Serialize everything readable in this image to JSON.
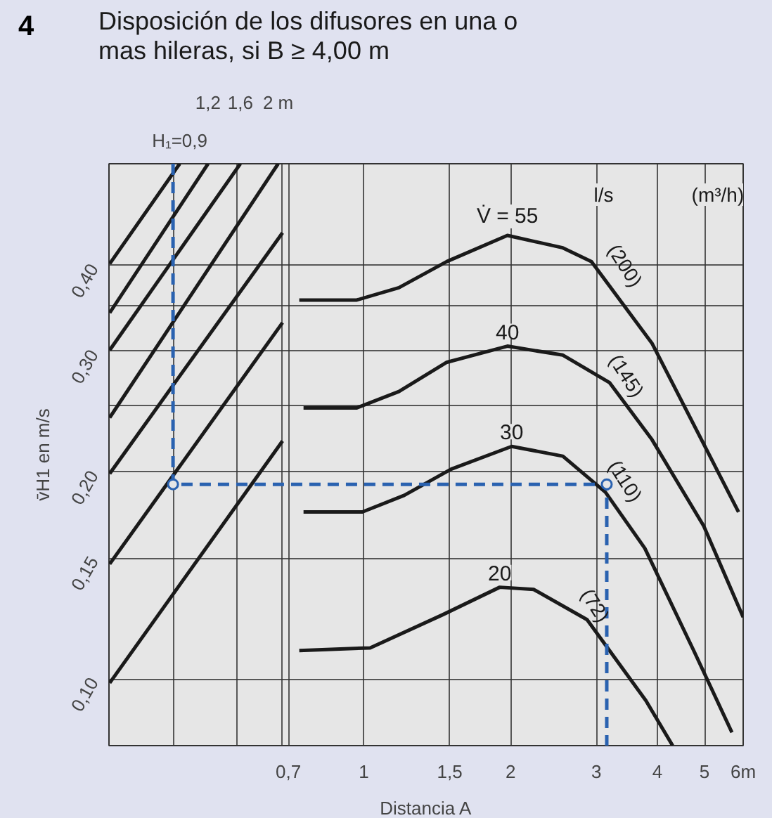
{
  "chart_data": {
    "type": "line",
    "title": "Disposición de los difusores en una o mas hileras, si B ≥ 4,00 m",
    "xlabel": "Distancia A",
    "ylabel": "v̄H1 en m/s",
    "log": "xy",
    "grid": true,
    "xlim": [
      0.3,
      6
    ],
    "ylim": [
      0.08,
      0.562
    ],
    "xticks": [
      {
        "value": 0.406,
        "label": null
      },
      {
        "value": 0.55,
        "label": null
      },
      {
        "value": 0.681,
        "label": null
      },
      {
        "value": 0.7,
        "label": "0,7"
      },
      1,
      {
        "value": 1.5,
        "label": "1,5"
      },
      2,
      3,
      4,
      5,
      {
        "value": 6,
        "label": "6m"
      }
    ],
    "yticks": [
      {
        "value": 0.1,
        "label": "0,10"
      },
      {
        "value": 0.15,
        "label": "0,15"
      },
      {
        "value": 0.2,
        "label": "0,20"
      },
      {
        "value": 0.25,
        "label": null
      },
      {
        "value": 0.3,
        "label": "0,30"
      },
      {
        "value": 0.35,
        "label": null
      },
      {
        "value": 0.4,
        "label": "0,40"
      }
    ],
    "line_style": "solid",
    "series": [
      {
        "name": "V̇ = 55",
        "color": "#1a1a1a",
        "x": [
          0.737,
          0.967,
          1.18,
          1.48,
          1.97,
          2.56,
          2.93,
          3.9,
          5.87
        ],
        "values": [
          0.356,
          0.356,
          0.371,
          0.405,
          0.442,
          0.424,
          0.405,
          0.308,
          0.175
        ]
      },
      {
        "name": "40",
        "color": "#1a1a1a",
        "x": [
          0.752,
          0.967,
          1.18,
          1.48,
          1.97,
          2.56,
          3.19,
          3.9,
          4.98,
          6.0
        ],
        "values": [
          0.248,
          0.248,
          0.262,
          0.289,
          0.305,
          0.296,
          0.27,
          0.223,
          0.167,
          0.123
        ]
      },
      {
        "name": "30",
        "color": "#1a1a1a",
        "x": [
          0.752,
          0.993,
          1.21,
          1.51,
          2.01,
          2.56,
          3.13,
          3.77,
          4.75,
          5.69
        ],
        "values": [
          0.175,
          0.175,
          0.185,
          0.202,
          0.218,
          0.211,
          0.187,
          0.155,
          0.11,
          0.0836
        ]
      },
      {
        "name": "20",
        "color": "#1a1a1a",
        "x": [
          0.737,
          1.03,
          1.45,
          1.9,
          2.23,
          2.87,
          3.79,
          4.3
        ],
        "values": [
          0.11,
          0.111,
          0.124,
          0.136,
          0.135,
          0.122,
          0.093,
          0.08
        ]
      },
      {
        "name": "H₁=0,9",
        "color": "#1a1a1a",
        "x": [
          0.301,
          0.419
        ],
        "values": [
          0.402,
          0.562
        ]
      },
      {
        "name": "1,2",
        "color": "#1a1a1a",
        "x": [
          0.301,
          0.479
        ],
        "values": [
          0.341,
          0.562
        ]
      },
      {
        "name": "1,6",
        "color": "#1a1a1a",
        "x": [
          0.301,
          0.558
        ],
        "values": [
          0.301,
          0.562
        ]
      },
      {
        "name": "2 m",
        "color": "#1a1a1a",
        "x": [
          0.301,
          0.667
        ],
        "values": [
          0.24,
          0.562
        ]
      },
      {
        "color": "#1a1a1a",
        "x": [
          0.301,
          0.681
        ],
        "values": [
          0.199,
          0.446
        ]
      },
      {
        "color": "#1a1a1a",
        "x": [
          0.301,
          0.681
        ],
        "values": [
          0.147,
          0.33
        ]
      },
      {
        "color": "#1a1a1a",
        "x": [
          0.301,
          0.681
        ],
        "values": [
          0.0987,
          0.222
        ]
      },
      {
        "color": "#2a62b0",
        "line_style": "dashed",
        "x": [
          0.406,
          0.406,
          3.15,
          3.15
        ],
        "values": [
          0.562,
          0.192,
          0.192,
          0.08
        ]
      },
      {
        "type": "scatter",
        "marker": "circle",
        "color": "#2a62b0",
        "x": [
          0.406,
          3.15
        ],
        "values": [
          0.192,
          0.192
        ]
      }
    ],
    "annotations": [
      "4",
      "l/s",
      "(m³/h)",
      "(200)",
      "(145)",
      "(110)",
      "(72)"
    ]
  }
}
